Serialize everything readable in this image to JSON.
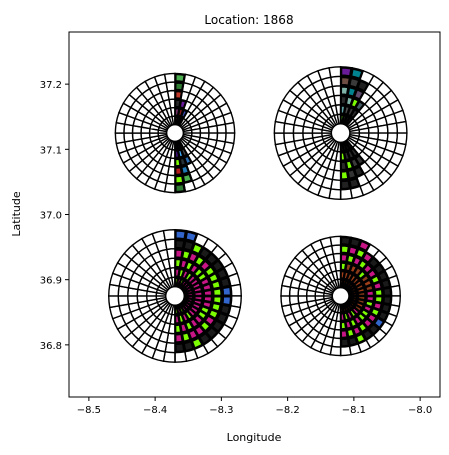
{
  "chart_data": {
    "type": "polar-glyph-map",
    "title": "Location: 1868",
    "xlabel": "Longitude",
    "ylabel": "Latitude",
    "xlim": [
      -8.53,
      -7.97
    ],
    "ylim": [
      36.72,
      37.28
    ],
    "xticks": [
      -8.5,
      -8.4,
      -8.3,
      -8.2,
      -8.1,
      -8.0
    ],
    "yticks": [
      36.8,
      36.9,
      37.0,
      37.1,
      37.2
    ],
    "xtick_labels": [
      "−8.5",
      "−8.4",
      "−8.3",
      "−8.2",
      "−8.1",
      "−8.0"
    ],
    "ytick_labels": [
      "36.8",
      "36.9",
      "37.0",
      "37.1",
      "37.2"
    ],
    "grid": false,
    "glyph_style": {
      "rings": 6,
      "sectors": 36,
      "line_color": "#000000",
      "empty_fill": "#ffffff"
    },
    "glyphs": [
      {
        "center": [
          -8.37,
          37.125
        ],
        "radius": 0.09,
        "wedges": [
          {
            "from": 0,
            "to": 10,
            "rings": 6,
            "colors": [
              "#6b3a2a",
              "#8a3a7a",
              "#2a2a2a",
              "#c0392b",
              "#2e7d32",
              "#4caf50"
            ]
          },
          {
            "from": 10,
            "to": 20,
            "rings": 3,
            "colors": [
              "#1a1a1a",
              "#8b1a1a",
              "#6a1b9a"
            ]
          },
          {
            "from": 20,
            "to": 30,
            "rings": 2,
            "colors": [
              "#111111",
              "#3949ab"
            ]
          },
          {
            "from": 150,
            "to": 160,
            "rings": 3,
            "colors": [
              "#1a1a1a",
              "#444444",
              "#2b6cb0"
            ]
          },
          {
            "from": 160,
            "to": 170,
            "rings": 5,
            "colors": [
              "#1b1b1b",
              "#3fa9f5",
              "#263238",
              "#1f77b4",
              "#4caf50"
            ]
          },
          {
            "from": 170,
            "to": 180,
            "rings": 6,
            "colors": [
              "#1a1a1a",
              "#4a148c",
              "#7cfc00",
              "#b71c1c",
              "#7cfc00",
              "#2e7d32"
            ]
          }
        ]
      },
      {
        "center": [
          -8.12,
          37.125
        ],
        "radius": 0.1,
        "wedges": [
          {
            "from": 0,
            "to": 10,
            "rings": 6,
            "colors": [
              "#7cfc00",
              "#5f9ea0",
              "#2a2a2a",
              "#7fb3a8",
              "#6d4c41",
              "#6a1b9a"
            ]
          },
          {
            "from": 10,
            "to": 20,
            "rings": 6,
            "colors": [
              "#2e2e2e",
              "#4a4a4a",
              "#7fb3a8",
              "#00838f",
              "#3a3a3a",
              "#00838f"
            ]
          },
          {
            "from": 20,
            "to": 30,
            "rings": 5,
            "colors": [
              "#1a1a1a",
              "#3a3a3a",
              "#7cfc00",
              "#5e4b6e",
              "#1f1f1f"
            ]
          },
          {
            "from": 30,
            "to": 40,
            "rings": 3,
            "colors": [
              "#1a1a1a",
              "#2a2a2a",
              "#455a64"
            ]
          },
          {
            "from": 140,
            "to": 150,
            "rings": 3,
            "colors": [
              "#1a1a1a",
              "#2a2a2a",
              "#333333"
            ]
          },
          {
            "from": 150,
            "to": 160,
            "rings": 4,
            "colors": [
              "#1a1a1a",
              "#2a2a2a",
              "#3a3a3a",
              "#222222"
            ]
          },
          {
            "from": 160,
            "to": 170,
            "rings": 5,
            "colors": [
              "#1a1a1a",
              "#2b2b2b",
              "#7cfc00",
              "#333333",
              "#222222"
            ]
          },
          {
            "from": 170,
            "to": 180,
            "rings": 5,
            "colors": [
              "#1a1a1a",
              "#7cfc00",
              "#2a2a2a",
              "#7cfc00",
              "#222222"
            ]
          }
        ]
      },
      {
        "center": [
          -8.37,
          36.875
        ],
        "radius": 0.1,
        "wedges": [
          {
            "from": 0,
            "to": 10,
            "rings": 6,
            "colors": [
              "#7cfc00",
              "#c71585",
              "#7cfc00",
              "#c71585",
              "#1a1a1a",
              "#3366cc"
            ]
          },
          {
            "from": 10,
            "to": 20,
            "rings": 6,
            "colors": [
              "#c71585",
              "#7cfc00",
              "#c71585",
              "#7cfc00",
              "#1a1a1a",
              "#3366cc"
            ]
          },
          {
            "from": 20,
            "to": 30,
            "rings": 5,
            "colors": [
              "#7cfc00",
              "#c71585",
              "#7cfc00",
              "#c71585",
              "#7cfc00"
            ]
          },
          {
            "from": 30,
            "to": 40,
            "rings": 5,
            "colors": [
              "#c71585",
              "#7cfc00",
              "#c71585",
              "#7cfc00",
              "#1a1a1a"
            ]
          },
          {
            "from": 40,
            "to": 50,
            "rings": 5,
            "colors": [
              "#c71585",
              "#c71585",
              "#7cfc00",
              "#c71585",
              "#1a1a1a"
            ]
          },
          {
            "from": 50,
            "to": 60,
            "rings": 5,
            "colors": [
              "#c71585",
              "#c71585",
              "#7cfc00",
              "#7cfc00",
              "#1a1a1a"
            ]
          },
          {
            "from": 60,
            "to": 70,
            "rings": 5,
            "colors": [
              "#c71585",
              "#c71585",
              "#c71585",
              "#7cfc00",
              "#1a1a1a"
            ]
          },
          {
            "from": 70,
            "to": 80,
            "rings": 5,
            "colors": [
              "#c71585",
              "#c71585",
              "#c71585",
              "#7cfc00",
              "#1a1a1a"
            ]
          },
          {
            "from": 80,
            "to": 90,
            "rings": 5,
            "colors": [
              "#c71585",
              "#c71585",
              "#c71585",
              "#7cfc00",
              "#3366cc"
            ]
          },
          {
            "from": 90,
            "to": 100,
            "rings": 5,
            "colors": [
              "#c71585",
              "#c71585",
              "#c71585",
              "#7cfc00",
              "#3366cc"
            ]
          },
          {
            "from": 100,
            "to": 110,
            "rings": 5,
            "colors": [
              "#c71585",
              "#c71585",
              "#c71585",
              "#7cfc00",
              "#1a1a1a"
            ]
          },
          {
            "from": 110,
            "to": 120,
            "rings": 5,
            "colors": [
              "#c71585",
              "#c71585",
              "#7cfc00",
              "#7cfc00",
              "#1a1a1a"
            ]
          },
          {
            "from": 120,
            "to": 130,
            "rings": 5,
            "colors": [
              "#c71585",
              "#c71585",
              "#7cfc00",
              "#c71585",
              "#1a1a1a"
            ]
          },
          {
            "from": 130,
            "to": 140,
            "rings": 5,
            "colors": [
              "#c71585",
              "#c71585",
              "#c71585",
              "#7cfc00",
              "#1a1a1a"
            ]
          },
          {
            "from": 140,
            "to": 150,
            "rings": 5,
            "colors": [
              "#c71585",
              "#7cfc00",
              "#c71585",
              "#c71585",
              "#1a1a1a"
            ]
          },
          {
            "from": 150,
            "to": 160,
            "rings": 5,
            "colors": [
              "#7cfc00",
              "#c71585",
              "#7cfc00",
              "#c71585",
              "#7cfc00"
            ]
          },
          {
            "from": 160,
            "to": 170,
            "rings": 5,
            "colors": [
              "#c71585",
              "#7cfc00",
              "#c71585",
              "#7cfc00",
              "#1a1a1a"
            ]
          },
          {
            "from": 170,
            "to": 180,
            "rings": 5,
            "colors": [
              "#7cfc00",
              "#c71585",
              "#7cfc00",
              "#c71585",
              "#1a1a1a"
            ]
          }
        ]
      },
      {
        "center": [
          -8.12,
          36.875
        ],
        "radius": 0.09,
        "wedges": [
          {
            "from": 0,
            "to": 10,
            "rings": 6,
            "colors": [
              "#8b3a1a",
              "#a0401a",
              "#7cfc00",
              "#c71585",
              "#7cfc00",
              "#1a1a1a"
            ]
          },
          {
            "from": 10,
            "to": 20,
            "rings": 6,
            "colors": [
              "#8b3a1a",
              "#a0401a",
              "#8b3a1a",
              "#7cfc00",
              "#c71585",
              "#1a1a1a"
            ]
          },
          {
            "from": 20,
            "to": 30,
            "rings": 6,
            "colors": [
              "#a0401a",
              "#8b3a1a",
              "#a0401a",
              "#c71585",
              "#7cfc00",
              "#c71585"
            ]
          },
          {
            "from": 30,
            "to": 40,
            "rings": 5,
            "colors": [
              "#8b3a1a",
              "#a0401a",
              "#8b3a1a",
              "#7cfc00",
              "#c71585"
            ]
          },
          {
            "from": 40,
            "to": 50,
            "rings": 5,
            "colors": [
              "#a0401a",
              "#8b3a1a",
              "#7cfc00",
              "#c71585",
              "#1a1a1a"
            ]
          },
          {
            "from": 50,
            "to": 60,
            "rings": 5,
            "colors": [
              "#8b3a1a",
              "#a0401a",
              "#8b3a1a",
              "#c71585",
              "#1a1a1a"
            ]
          },
          {
            "from": 60,
            "to": 70,
            "rings": 5,
            "colors": [
              "#a0401a",
              "#8b3a1a",
              "#a0401a",
              "#7cfc00",
              "#1a1a1a"
            ]
          },
          {
            "from": 70,
            "to": 80,
            "rings": 5,
            "colors": [
              "#8b3a1a",
              "#a0401a",
              "#8b3a1a",
              "#c71585",
              "#1a1a1a"
            ]
          },
          {
            "from": 80,
            "to": 90,
            "rings": 5,
            "colors": [
              "#a0401a",
              "#8b3a1a",
              "#c71585",
              "#7cfc00",
              "#1a1a1a"
            ]
          },
          {
            "from": 90,
            "to": 100,
            "rings": 5,
            "colors": [
              "#8b3a1a",
              "#a0401a",
              "#c71585",
              "#7cfc00",
              "#1a1a1a"
            ]
          },
          {
            "from": 100,
            "to": 110,
            "rings": 5,
            "colors": [
              "#a0401a",
              "#8b3a1a",
              "#7cfc00",
              "#c71585",
              "#1a1a1a"
            ]
          },
          {
            "from": 110,
            "to": 120,
            "rings": 5,
            "colors": [
              "#8b3a1a",
              "#a0401a",
              "#c71585",
              "#7cfc00",
              "#1a1a1a"
            ]
          },
          {
            "from": 120,
            "to": 130,
            "rings": 5,
            "colors": [
              "#a0401a",
              "#8b3a1a",
              "#7cfc00",
              "#c71585",
              "#3366cc"
            ]
          },
          {
            "from": 130,
            "to": 140,
            "rings": 5,
            "colors": [
              "#8b3a1a",
              "#c71585",
              "#7cfc00",
              "#c71585",
              "#1a1a1a"
            ]
          },
          {
            "from": 140,
            "to": 150,
            "rings": 5,
            "colors": [
              "#a0401a",
              "#7cfc00",
              "#c71585",
              "#7cfc00",
              "#1a1a1a"
            ]
          },
          {
            "from": 150,
            "to": 160,
            "rings": 5,
            "colors": [
              "#8b3a1a",
              "#c71585",
              "#7cfc00",
              "#c71585",
              "#7cfc00"
            ]
          },
          {
            "from": 160,
            "to": 170,
            "rings": 5,
            "colors": [
              "#a0401a",
              "#7cfc00",
              "#c71585",
              "#7cfc00",
              "#1a1a1a"
            ]
          },
          {
            "from": 170,
            "to": 180,
            "rings": 5,
            "colors": [
              "#8b3a1a",
              "#c71585",
              "#7cfc00",
              "#c71585",
              "#1a1a1a"
            ]
          }
        ]
      }
    ]
  }
}
